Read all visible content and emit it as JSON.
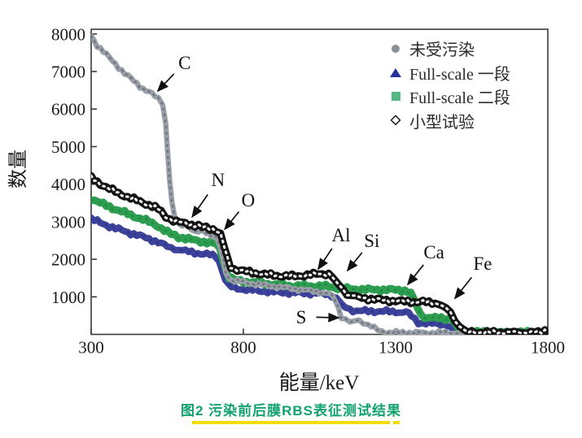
{
  "axes": {
    "y_label": "数量",
    "x_label": "能量/keV"
  },
  "legend": {
    "items": [
      {
        "id": "uncontaminated",
        "label": "未受污染",
        "marker": "circle",
        "color": "#8b9096"
      },
      {
        "id": "full-scale-1",
        "label": "Full-scale 一段",
        "marker": "triangle",
        "color": "#23339b"
      },
      {
        "id": "full-scale-2",
        "label": "Full-scale 二段",
        "marker": "square",
        "color": "#55b884"
      },
      {
        "id": "small-test",
        "label": "小型试验",
        "marker": "open-diamond",
        "color": "#1a1a1a"
      }
    ]
  },
  "caption": {
    "text": "图2  污染前后膜RBS表征测试结果",
    "color": "#12a26d",
    "underline_color": "#f2dc04"
  },
  "chart_data": {
    "type": "line",
    "xlabel": "能量/keV",
    "ylabel": "数量",
    "xlim": [
      300,
      1800
    ],
    "ylim": [
      0,
      8150
    ],
    "x_ticks": [
      300,
      800,
      1300,
      1800
    ],
    "y_ticks": [
      1000,
      2000,
      3000,
      4000,
      5000,
      6000,
      7000,
      8000
    ],
    "grid": false,
    "legend_position": "top-right-inside",
    "annotations": [
      {
        "label": "C",
        "text": [
          607,
          7240
        ],
        "tip": [
          519,
          6480
        ]
      },
      {
        "label": "N",
        "text": [
          717,
          4120
        ],
        "tip": [
          632,
          3130
        ]
      },
      {
        "label": "O",
        "text": [
          816,
          3580
        ],
        "tip": [
          739,
          2800
        ]
      },
      {
        "label": "Al",
        "text": [
          1121,
          2650
        ],
        "tip": [
          1046,
          1740
        ]
      },
      {
        "label": "Si",
        "text": [
          1222,
          2500
        ],
        "tip": [
          1142,
          1700
        ]
      },
      {
        "label": "Ca",
        "text": [
          1426,
          2200
        ],
        "tip": [
          1340,
          1330
        ]
      },
      {
        "label": "Fe",
        "text": [
          1586,
          1890
        ],
        "tip": [
          1495,
          960
        ]
      },
      {
        "label": "S",
        "text": [
          990,
          465
        ],
        "tip": [
          1113,
          444
        ]
      }
    ],
    "series": [
      {
        "id": "uncontaminated",
        "name": "未受污染",
        "color": "#9aa0a8",
        "marker": "filled-circle",
        "points": [
          [
            300,
            7950
          ],
          [
            320,
            7700
          ],
          [
            350,
            7450
          ],
          [
            380,
            7200
          ],
          [
            410,
            6950
          ],
          [
            440,
            6750
          ],
          [
            470,
            6550
          ],
          [
            500,
            6400
          ],
          [
            520,
            6280
          ],
          [
            535,
            6150
          ],
          [
            545,
            5600
          ],
          [
            552,
            4800
          ],
          [
            558,
            4100
          ],
          [
            565,
            3500
          ],
          [
            575,
            3100
          ],
          [
            590,
            2890
          ],
          [
            600,
            2930
          ],
          [
            610,
            2990
          ],
          [
            618,
            2960
          ],
          [
            628,
            2820
          ],
          [
            640,
            2700
          ],
          [
            652,
            2730
          ],
          [
            665,
            2760
          ],
          [
            678,
            2720
          ],
          [
            695,
            2650
          ],
          [
            710,
            2560
          ],
          [
            722,
            2380
          ],
          [
            733,
            2000
          ],
          [
            742,
            1680
          ],
          [
            752,
            1500
          ],
          [
            770,
            1430
          ],
          [
            800,
            1390
          ],
          [
            850,
            1330
          ],
          [
            900,
            1280
          ],
          [
            950,
            1230
          ],
          [
            1000,
            1180
          ],
          [
            1050,
            1130
          ],
          [
            1080,
            1080
          ],
          [
            1100,
            950
          ],
          [
            1112,
            700
          ],
          [
            1122,
            480
          ],
          [
            1135,
            390
          ],
          [
            1150,
            330
          ],
          [
            1165,
            350
          ],
          [
            1180,
            360
          ],
          [
            1195,
            330
          ],
          [
            1210,
            260
          ],
          [
            1230,
            160
          ],
          [
            1255,
            80
          ],
          [
            1280,
            50
          ],
          [
            1400,
            45
          ],
          [
            1600,
            42
          ],
          [
            1800,
            40
          ]
        ]
      },
      {
        "id": "full-scale-1",
        "name": "Full-scale 一段",
        "color": "#3c4199",
        "marker": "filled-triangle",
        "points": [
          [
            300,
            3080
          ],
          [
            330,
            2970
          ],
          [
            360,
            2880
          ],
          [
            390,
            2800
          ],
          [
            420,
            2720
          ],
          [
            450,
            2650
          ],
          [
            480,
            2570
          ],
          [
            510,
            2490
          ],
          [
            530,
            2420
          ],
          [
            550,
            2340
          ],
          [
            575,
            2280
          ],
          [
            600,
            2230
          ],
          [
            630,
            2190
          ],
          [
            660,
            2150
          ],
          [
            690,
            2120
          ],
          [
            708,
            2080
          ],
          [
            720,
            1960
          ],
          [
            731,
            1700
          ],
          [
            741,
            1450
          ],
          [
            752,
            1300
          ],
          [
            770,
            1240
          ],
          [
            800,
            1200
          ],
          [
            850,
            1160
          ],
          [
            900,
            1130
          ],
          [
            950,
            1110
          ],
          [
            1000,
            1100
          ],
          [
            1040,
            1090
          ],
          [
            1070,
            1080
          ],
          [
            1090,
            1040
          ],
          [
            1105,
            950
          ],
          [
            1120,
            820
          ],
          [
            1135,
            720
          ],
          [
            1150,
            660
          ],
          [
            1170,
            630
          ],
          [
            1200,
            620
          ],
          [
            1240,
            615
          ],
          [
            1280,
            610
          ],
          [
            1310,
            600
          ],
          [
            1335,
            580
          ],
          [
            1352,
            500
          ],
          [
            1363,
            400
          ],
          [
            1375,
            330
          ],
          [
            1390,
            300
          ],
          [
            1420,
            290
          ],
          [
            1450,
            280
          ],
          [
            1470,
            250
          ],
          [
            1482,
            150
          ],
          [
            1492,
            70
          ],
          [
            1505,
            45
          ],
          [
            1600,
            40
          ],
          [
            1700,
            38
          ],
          [
            1800,
            36
          ]
        ]
      },
      {
        "id": "full-scale-2",
        "name": "Full-scale 二段",
        "color": "#2d9e50",
        "marker": "filled-square",
        "points": [
          [
            300,
            3620
          ],
          [
            330,
            3500
          ],
          [
            360,
            3400
          ],
          [
            390,
            3300
          ],
          [
            420,
            3210
          ],
          [
            450,
            3120
          ],
          [
            480,
            3030
          ],
          [
            510,
            2930
          ],
          [
            530,
            2830
          ],
          [
            550,
            2720
          ],
          [
            575,
            2630
          ],
          [
            600,
            2570
          ],
          [
            630,
            2520
          ],
          [
            660,
            2480
          ],
          [
            690,
            2440
          ],
          [
            710,
            2400
          ],
          [
            722,
            2300
          ],
          [
            733,
            2000
          ],
          [
            743,
            1700
          ],
          [
            753,
            1520
          ],
          [
            770,
            1450
          ],
          [
            800,
            1410
          ],
          [
            850,
            1370
          ],
          [
            900,
            1330
          ],
          [
            950,
            1300
          ],
          [
            1000,
            1290
          ],
          [
            1040,
            1290
          ],
          [
            1070,
            1280
          ],
          [
            1090,
            1260
          ],
          [
            1110,
            1240
          ],
          [
            1130,
            1220
          ],
          [
            1150,
            1210
          ],
          [
            1180,
            1200
          ],
          [
            1220,
            1190
          ],
          [
            1260,
            1190
          ],
          [
            1300,
            1185
          ],
          [
            1330,
            1170
          ],
          [
            1350,
            1100
          ],
          [
            1362,
            900
          ],
          [
            1372,
            700
          ],
          [
            1382,
            530
          ],
          [
            1395,
            460
          ],
          [
            1420,
            440
          ],
          [
            1450,
            430
          ],
          [
            1475,
            420
          ],
          [
            1490,
            350
          ],
          [
            1500,
            200
          ],
          [
            1510,
            90
          ],
          [
            1525,
            60
          ],
          [
            1600,
            55
          ],
          [
            1700,
            52
          ],
          [
            1800,
            50
          ]
        ]
      },
      {
        "id": "small-test",
        "name": "小型试验",
        "color": "#141414",
        "marker": "open-diamond",
        "points": [
          [
            300,
            4170
          ],
          [
            330,
            4010
          ],
          [
            360,
            3880
          ],
          [
            390,
            3760
          ],
          [
            420,
            3660
          ],
          [
            450,
            3570
          ],
          [
            480,
            3480
          ],
          [
            510,
            3380
          ],
          [
            530,
            3280
          ],
          [
            545,
            3150
          ],
          [
            560,
            3060
          ],
          [
            580,
            3000
          ],
          [
            610,
            2960
          ],
          [
            640,
            2900
          ],
          [
            665,
            2860
          ],
          [
            690,
            2820
          ],
          [
            710,
            2780
          ],
          [
            725,
            2650
          ],
          [
            737,
            2350
          ],
          [
            748,
            2000
          ],
          [
            758,
            1800
          ],
          [
            770,
            1740
          ],
          [
            800,
            1690
          ],
          [
            840,
            1630
          ],
          [
            880,
            1590
          ],
          [
            920,
            1560
          ],
          [
            960,
            1550
          ],
          [
            1000,
            1570
          ],
          [
            1030,
            1600
          ],
          [
            1060,
            1620
          ],
          [
            1080,
            1600
          ],
          [
            1095,
            1500
          ],
          [
            1110,
            1350
          ],
          [
            1125,
            1200
          ],
          [
            1140,
            1100
          ],
          [
            1155,
            1030
          ],
          [
            1170,
            990
          ],
          [
            1200,
            960
          ],
          [
            1240,
            930
          ],
          [
            1280,
            900
          ],
          [
            1320,
            880
          ],
          [
            1360,
            870
          ],
          [
            1400,
            860
          ],
          [
            1430,
            840
          ],
          [
            1450,
            790
          ],
          [
            1465,
            700
          ],
          [
            1480,
            560
          ],
          [
            1495,
            400
          ],
          [
            1510,
            220
          ],
          [
            1525,
            100
          ],
          [
            1540,
            60
          ],
          [
            1600,
            55
          ],
          [
            1700,
            55
          ],
          [
            1780,
            55
          ],
          [
            1790,
            110
          ],
          [
            1800,
            115
          ]
        ]
      }
    ]
  }
}
